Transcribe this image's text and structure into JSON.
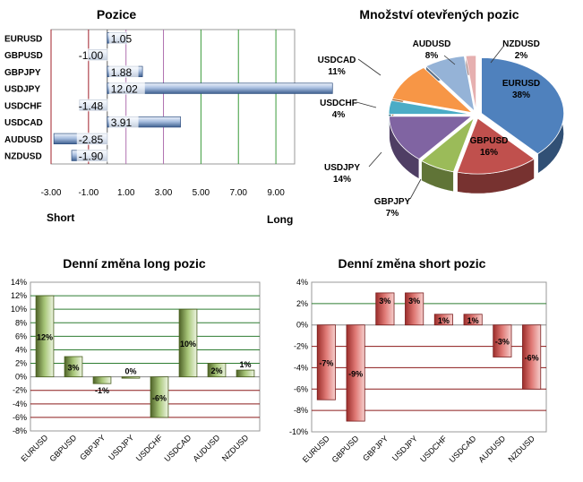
{
  "charts": {
    "positions": {
      "title": "Pozice",
      "short_label": "Short",
      "long_label": "Long",
      "chart_data": {
        "type": "bar",
        "orientation": "horizontal",
        "categories": [
          "EURUSD",
          "GBPUSD",
          "GBPJPY",
          "USDJPY",
          "USDCHF",
          "USDCAD",
          "AUDUSD",
          "NZDUSD"
        ],
        "values": [
          1.05,
          -1.0,
          1.88,
          12.02,
          -1.48,
          3.91,
          -2.85,
          -1.9
        ],
        "value_labels": [
          "1.05",
          "-1.00",
          "1.88",
          "12.02",
          "-1.48",
          "3.91",
          "-2.85",
          "-1.90"
        ],
        "xlim": [
          -3,
          10
        ],
        "xticks": [
          "-3.00",
          "-1.00",
          "1.00",
          "3.00",
          "5.00",
          "7.00",
          "9.00"
        ],
        "bar_color": "#8eaadb"
      }
    },
    "open_positions": {
      "title": "Množství otevřených pozic",
      "chart_data": {
        "type": "pie",
        "labels": [
          "EURUSD",
          "GBPUSD",
          "GBPJPY",
          "USDJPY",
          "USDCHF",
          "USDCAD",
          "AUDUSD",
          "NZDUSD"
        ],
        "values": [
          38,
          16,
          7,
          14,
          4,
          11,
          8,
          2
        ],
        "value_labels": [
          "38%",
          "16%",
          "7%",
          "14%",
          "4%",
          "11%",
          "8%",
          "2%"
        ],
        "colors": [
          "#4f81bd",
          "#c0504d",
          "#9bbb59",
          "#8064a2",
          "#4bacc6",
          "#f79646",
          "#95b3d7",
          "#e6b0b0"
        ]
      }
    },
    "long_change": {
      "title": "Denní změna long pozic",
      "chart_data": {
        "type": "bar",
        "categories": [
          "EURUSD",
          "GBPUSD",
          "GBPJPY",
          "USDJPY",
          "USDCHF",
          "USDCAD",
          "AUDUSD",
          "NZDUSD"
        ],
        "values": [
          12,
          3,
          -1,
          0,
          -6,
          10,
          2,
          1
        ],
        "value_labels": [
          "12%",
          "3%",
          "-1%",
          "0%",
          "-6%",
          "10%",
          "2%",
          "1%"
        ],
        "ylim": [
          -8,
          14
        ],
        "yticks": [
          "14%",
          "12%",
          "10%",
          "8%",
          "6%",
          "4%",
          "2%",
          "0%",
          "-2%",
          "-4%",
          "-6%",
          "-8%"
        ],
        "bar_color": "#77933c"
      }
    },
    "short_change": {
      "title": "Denní změna short pozic",
      "chart_data": {
        "type": "bar",
        "categories": [
          "EURUSD",
          "GBPUSD",
          "GBPJPY",
          "USDJPY",
          "USDCHF",
          "USDCAD",
          "AUDUSD",
          "NZDUSD"
        ],
        "values": [
          -7,
          -9,
          3,
          3,
          1,
          1,
          -3,
          -6
        ],
        "value_labels": [
          "-7%",
          "-9%",
          "3%",
          "3%",
          "1%",
          "1%",
          "-3%",
          "-6%"
        ],
        "ylim": [
          -10,
          4
        ],
        "yticks": [
          "4%",
          "2%",
          "0%",
          "-2%",
          "-4%",
          "-6%",
          "-8%",
          "-10%"
        ],
        "bar_color": "#c0504d"
      }
    }
  }
}
